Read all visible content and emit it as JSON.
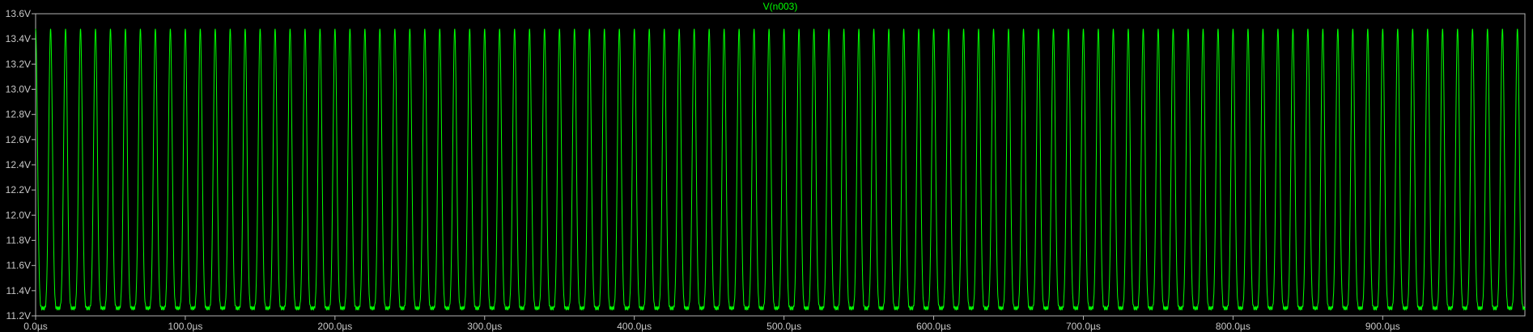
{
  "chart_data": {
    "type": "line",
    "title": "",
    "xlabel": "",
    "ylabel": "",
    "xlim": [
      0,
      995
    ],
    "ylim": [
      11.2,
      13.6
    ],
    "x_unit": "µs",
    "y_unit": "V",
    "grid": false,
    "legend": "top-center",
    "colors": {
      "background": "#000000",
      "axes": "#b4b4b4",
      "tick_text": "#c8c8c8",
      "trace": "#00ff00"
    },
    "y_ticks": [
      11.2,
      11.4,
      11.6,
      11.8,
      12.0,
      12.2,
      12.4,
      12.6,
      12.8,
      13.0,
      13.2,
      13.4,
      13.6
    ],
    "y_tick_labels": [
      "11.2V",
      "11.4V",
      "11.6V",
      "11.8V",
      "12.0V",
      "12.2V",
      "12.4V",
      "12.6V",
      "12.8V",
      "13.0V",
      "13.2V",
      "13.4V",
      "13.6V"
    ],
    "x_ticks": [
      0,
      100,
      200,
      300,
      400,
      500,
      600,
      700,
      800,
      900
    ],
    "x_tick_labels": [
      "0.0µs",
      "100.0µs",
      "200.0µs",
      "300.0µs",
      "400.0µs",
      "500.0µs",
      "600.0µs",
      "700.0µs",
      "800.0µs",
      "900.0µs"
    ],
    "series": [
      {
        "name": "V(n003)",
        "waveform": "periodic ripple",
        "period_us": 10,
        "max_V": 13.48,
        "min_V": 11.26,
        "x_start_us": 0,
        "x_end_us": 995
      }
    ]
  }
}
